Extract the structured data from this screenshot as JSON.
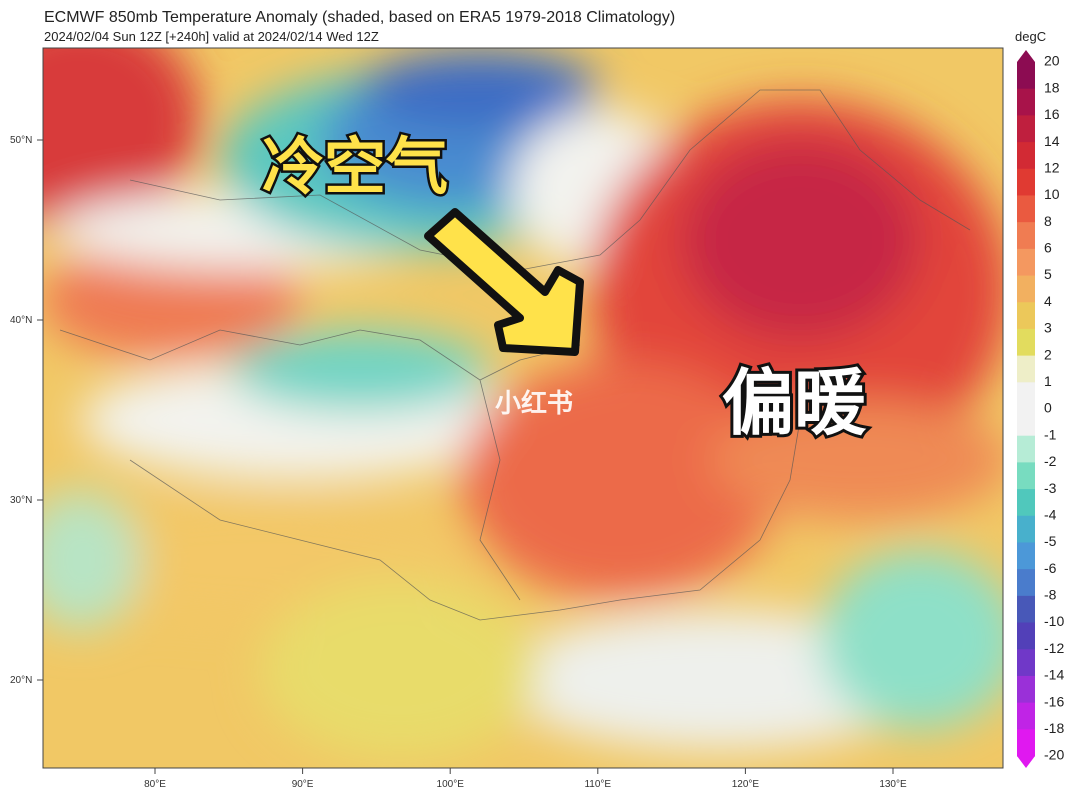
{
  "header": {
    "title": "ECMWF 850mb Temperature Anomaly (shaded, based on ERA5 1979-2018 Climatology)",
    "subtitle": "2024/02/04 Sun 12Z [+240h] valid at 2024/02/14 Wed 12Z"
  },
  "colorbar": {
    "unit": "degC",
    "labels": [
      "20",
      "18",
      "16",
      "14",
      "12",
      "10",
      "8",
      "6",
      "5",
      "4",
      "3",
      "2",
      "1",
      "0",
      "-1",
      "-2",
      "-3",
      "-4",
      "-5",
      "-6",
      "-8",
      "-10",
      "-12",
      "-14",
      "-16",
      "-18",
      "-20"
    ]
  },
  "map": {
    "lat_labels": [
      "50°N",
      "40°N",
      "30°N",
      "20°N"
    ],
    "lon_labels": [
      "80°E",
      "90°E",
      "100°E",
      "110°E",
      "120°E",
      "130°E"
    ],
    "annotations": {
      "cold": "冷空气",
      "warm": "偏暖",
      "watermark": "小红书"
    }
  }
}
